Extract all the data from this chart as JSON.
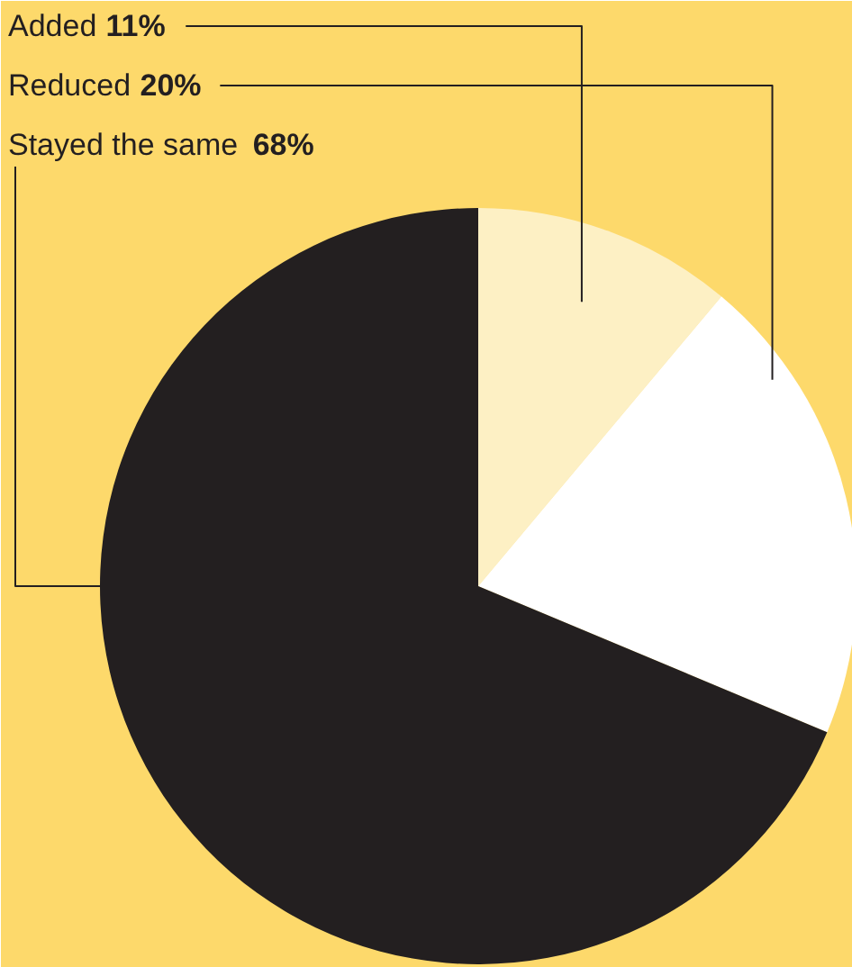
{
  "chart_data": {
    "type": "pie",
    "categories": [
      "Added",
      "Reduced",
      "Stayed the same"
    ],
    "values": [
      11,
      20,
      68
    ],
    "colors": [
      "#fdf0c4",
      "#ffffff",
      "#231f20"
    ],
    "value_labels": [
      "11%",
      "20%",
      "68%"
    ]
  }
}
